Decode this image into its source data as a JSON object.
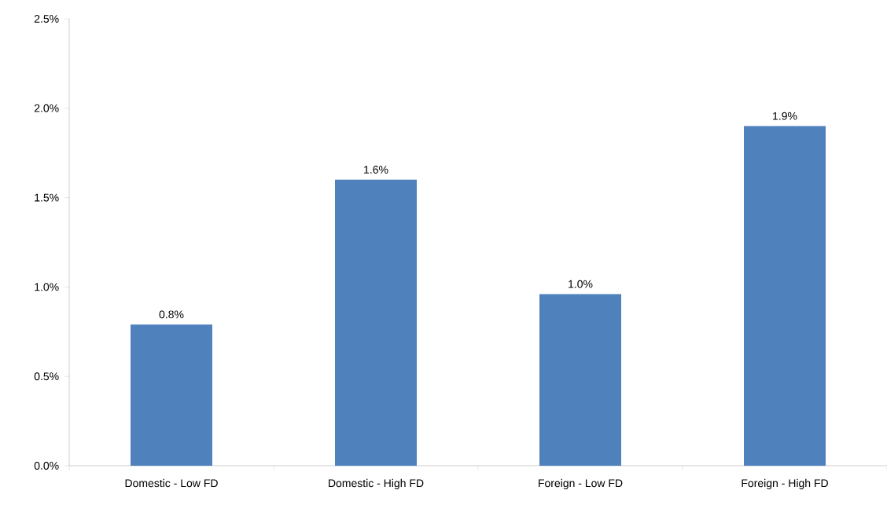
{
  "chart_data": {
    "type": "bar",
    "categories": [
      "Domestic - Low FD",
      "Domestic - High FD",
      "Foreign - Low FD",
      "Foreign - High FD"
    ],
    "values": [
      0.79,
      1.6,
      0.96,
      1.9
    ],
    "value_labels": [
      "0.8%",
      "1.6%",
      "1.0%",
      "1.9%"
    ],
    "color": "#4f81bd",
    "ylim": [
      0,
      2.5
    ],
    "yticks": [
      {
        "value": 0,
        "label": "0.0%"
      },
      {
        "value": 0.5,
        "label": "0.5%"
      },
      {
        "value": 1.0,
        "label": "1.0%"
      },
      {
        "value": 1.5,
        "label": "1.5%"
      },
      {
        "value": 2.0,
        "label": "2.0%"
      },
      {
        "value": 2.5,
        "label": "2.5%"
      }
    ],
    "grid": false
  }
}
